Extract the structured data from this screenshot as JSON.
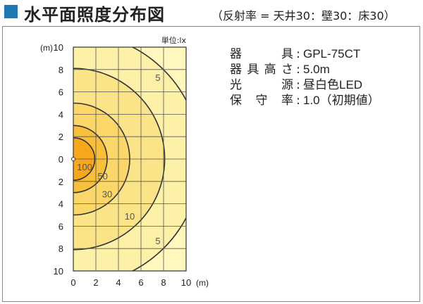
{
  "header": {
    "title": "水平面照度分布図",
    "subtitle": "（反射率 = 天井30：壁30：床30）",
    "accent_color": "#1f77b4"
  },
  "specs": [
    {
      "label": "器具",
      "value": "GPL-75CT"
    },
    {
      "label": "器具高さ",
      "value": "5.0m"
    },
    {
      "label": "光源",
      "value": "昼白色LED"
    },
    {
      "label": "保守率",
      "value": "1.0（初期値）"
    }
  ],
  "chart_data": {
    "type": "contour",
    "unit_label": "単位:lx",
    "x_unit": "(m)",
    "y_unit": "(m)",
    "x_ticks": [
      "0",
      "2",
      "4",
      "6",
      "8",
      "10"
    ],
    "y_ticks": [
      "10",
      "8",
      "6",
      "4",
      "2",
      "0",
      "2",
      "4",
      "6",
      "8",
      "10"
    ],
    "xlim": [
      0,
      10
    ],
    "ylim": [
      -10,
      10
    ],
    "grid": true,
    "source_position": [
      0,
      0
    ],
    "contours": [
      {
        "label": "100",
        "radius": 1.9,
        "fill": "#f5a81e",
        "label_pos": [
          1.0,
          -0.7
        ]
      },
      {
        "label": "50",
        "radius": 3.0,
        "fill": "#f8bf3a",
        "label_pos": [
          2.6,
          -1.5
        ]
      },
      {
        "label": "30",
        "radius": 5.0,
        "fill": "#fbd668",
        "label_pos": [
          3.0,
          -3.1
        ]
      },
      {
        "label": "10",
        "radius": 8.1,
        "fill": "#fbe488",
        "label_pos": [
          5.0,
          -5.1
        ]
      },
      {
        "label": "5",
        "radius": 11.3,
        "fill": "#fdf1a8",
        "label_pos": [
          7.5,
          7.3
        ]
      },
      {
        "label": "5",
        "radius": 11.3,
        "fill": "#fdf1a8",
        "label_pos": [
          7.5,
          -7.3
        ]
      }
    ],
    "outer_fill": "#fff7bd",
    "border_color": "#333333",
    "grid_color": "#555555"
  }
}
